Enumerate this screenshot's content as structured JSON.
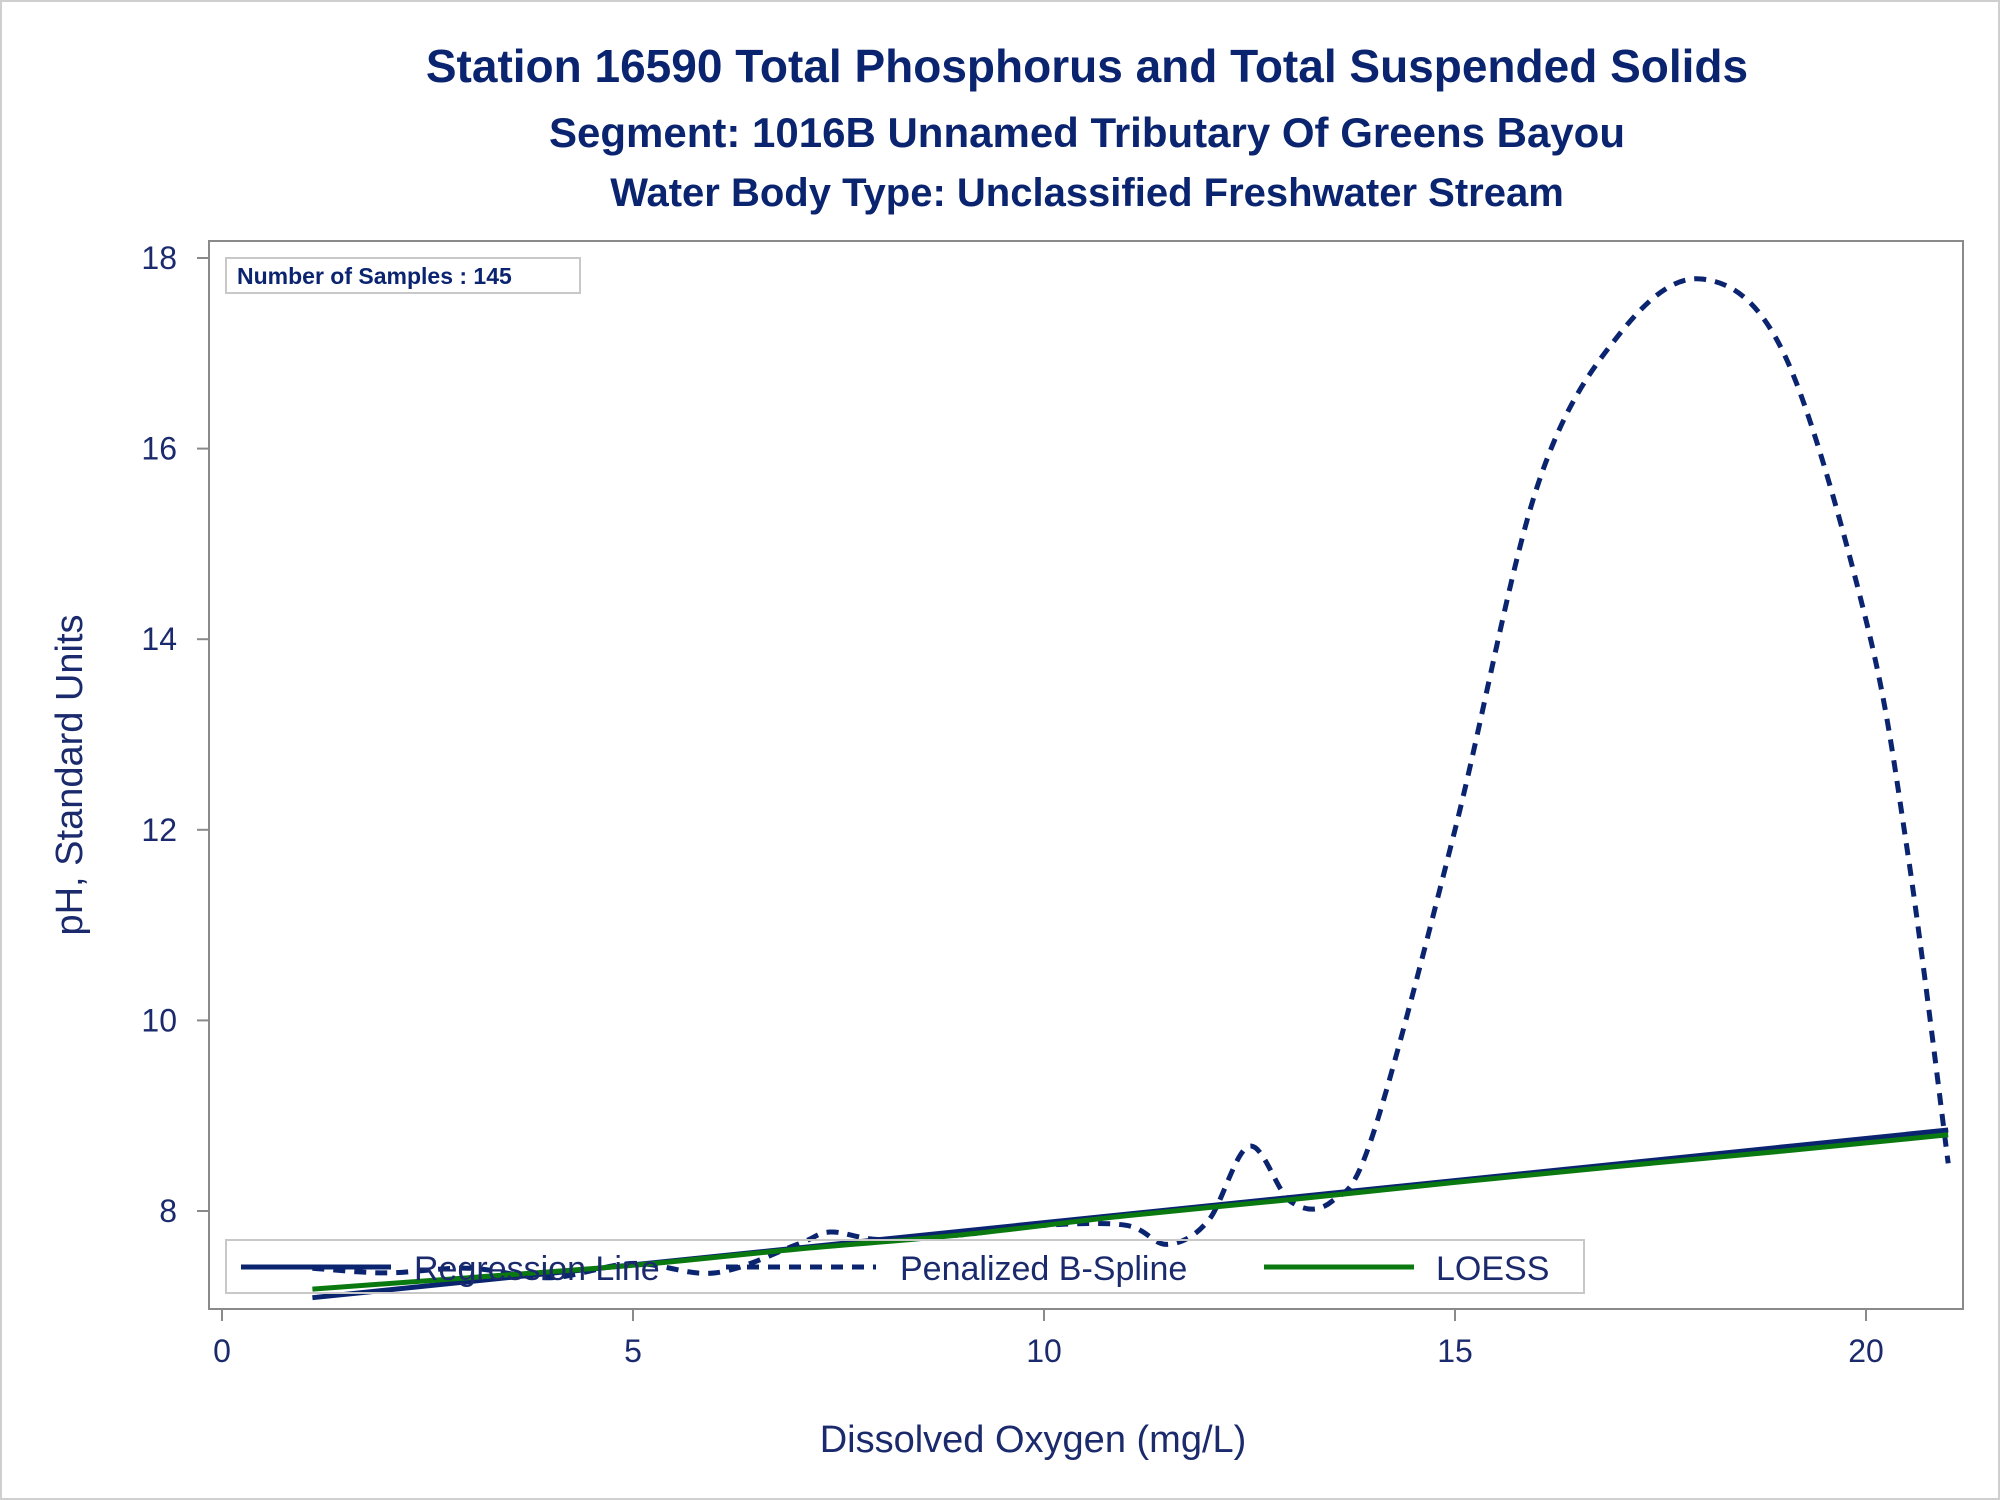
{
  "chart_data": {
    "type": "line",
    "title": "Station 16590  Total Phosphorus and Total Suspended Solids",
    "subtitle": "Segment: 1016B  Unnamed Tributary Of Greens Bayou",
    "subtitle2": "Water Body Type: Unclassified Freshwater Stream",
    "xlabel": "Dissolved Oxygen (mg/L)",
    "ylabel": "pH, Standard Units",
    "xlim": [
      0,
      21.2
    ],
    "ylim": [
      7.0,
      18.2
    ],
    "xticks": [
      0,
      5,
      10,
      15,
      20
    ],
    "yticks": [
      8,
      10,
      12,
      14,
      16,
      18
    ],
    "inset_label": "Number of Samples : 145",
    "legend_position": "bottom-inside",
    "grid": false,
    "series": [
      {
        "name": "Regression Line",
        "style": "solid",
        "color": "#0b2470",
        "x": [
          1.1,
          21.0
        ],
        "y": [
          7.09,
          8.85
        ]
      },
      {
        "name": "Penalized B-Spline",
        "style": "dashed",
        "color": "#0b2470",
        "x": [
          1.1,
          2.0,
          3.0,
          4.0,
          5.0,
          6.0,
          7.0,
          7.4,
          8.0,
          9.0,
          10.0,
          11.0,
          11.5,
          12.0,
          12.5,
          13.0,
          13.5,
          14.0,
          15.0,
          16.0,
          17.0,
          18.0,
          19.0,
          20.0,
          20.5,
          21.0
        ],
        "y": [
          7.4,
          7.35,
          7.4,
          7.3,
          7.45,
          7.35,
          7.65,
          7.78,
          7.7,
          7.75,
          7.85,
          7.85,
          7.65,
          7.9,
          8.68,
          8.1,
          8.1,
          8.8,
          12.0,
          15.6,
          17.2,
          17.78,
          17.0,
          14.2,
          11.8,
          8.5
        ]
      },
      {
        "name": "LOESS",
        "style": "solid",
        "color": "#0a7a10",
        "x": [
          1.1,
          3.0,
          5.0,
          7.0,
          9.0,
          11.0,
          13.0,
          15.0,
          17.0,
          19.0,
          21.0
        ],
        "y": [
          7.18,
          7.3,
          7.43,
          7.6,
          7.75,
          7.95,
          8.12,
          8.3,
          8.47,
          8.63,
          8.8
        ]
      }
    ],
    "colors": {
      "text": "#0b2470",
      "axis": "#8a8a8a",
      "regression": "#0b2470",
      "spline": "#0b2470",
      "loess": "#0a7a10"
    }
  }
}
